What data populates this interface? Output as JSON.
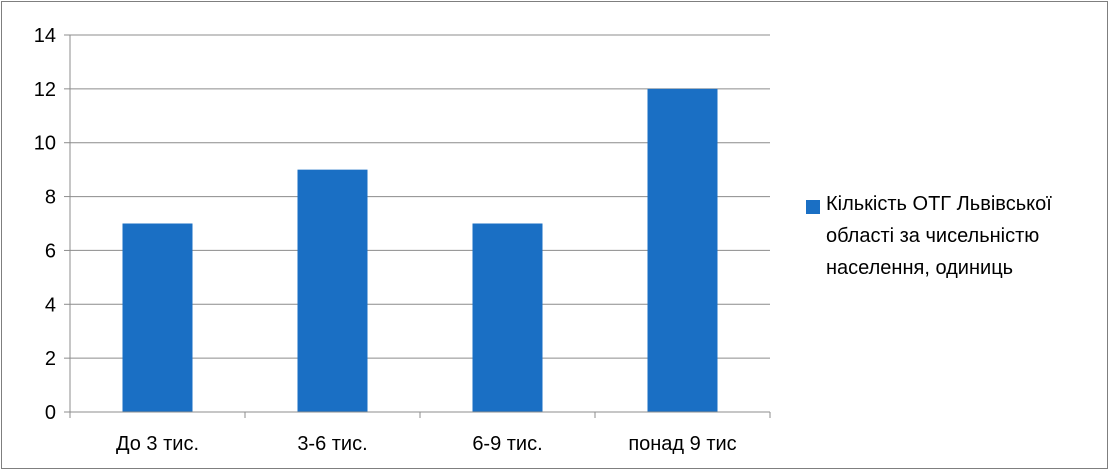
{
  "chart_data": {
    "type": "bar",
    "title": "",
    "xlabel": "",
    "ylabel": "",
    "categories": [
      "До 3 тис.",
      "3-6 тис.",
      "6-9 тис.",
      "понад 9 тис"
    ],
    "series": [
      {
        "name": "Кількість ОТГ Львівської області за чисельністю населення, одиниць",
        "values": [
          7,
          9,
          7,
          12
        ],
        "color": "#1a6fc4"
      }
    ],
    "ylim": [
      0,
      14
    ],
    "yticks": [
      0,
      2,
      4,
      6,
      8,
      10,
      12,
      14
    ],
    "grid": true,
    "legend_position": "right",
    "colors": {
      "bar": "#1a6fc4",
      "grid": "#8c8c8c",
      "axis": "#8c8c8c"
    }
  },
  "legend": {
    "lines": [
      "Кількість ОТГ Львівської",
      "області за чисельністю",
      "населення, одиниць"
    ]
  }
}
